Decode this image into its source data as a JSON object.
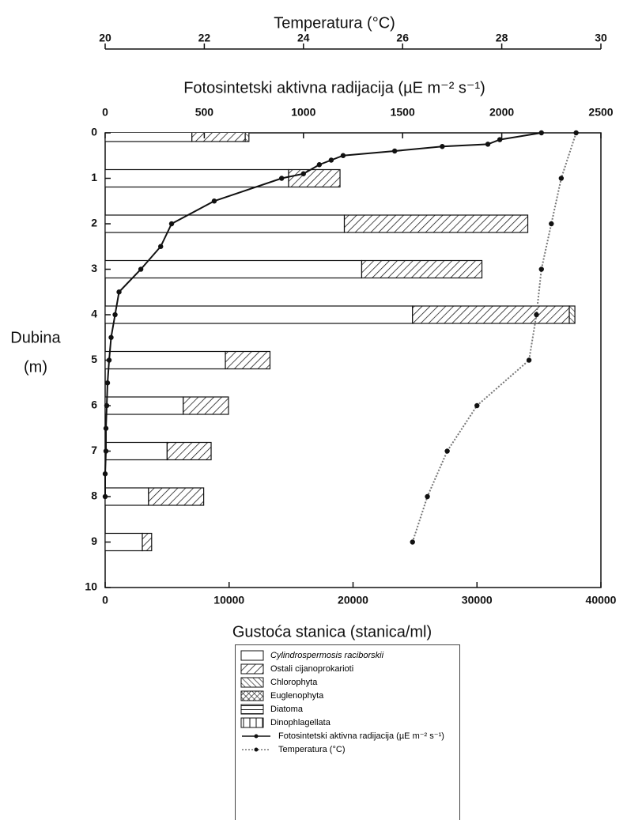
{
  "chart_data": [
    {
      "type": "bar",
      "orientation": "horizontal",
      "stacked": true,
      "xlabel": "Gustoća stanica (stanica/ml)",
      "ylabel": [
        "Dubina",
        "(m)"
      ],
      "y": [
        0,
        1,
        2,
        3,
        4,
        5,
        6,
        7,
        8,
        9
      ],
      "xlim": [
        0,
        40000
      ],
      "xticks": [
        0,
        10000,
        20000,
        30000,
        40000
      ],
      "ylim": [
        0,
        10
      ],
      "yticks": [
        0,
        1,
        2,
        3,
        4,
        5,
        6,
        7,
        8,
        9,
        10
      ],
      "y_inverted": true,
      "series": [
        {
          "name": "Cylindrospermosis raciborskii",
          "color": "#ffffff",
          "pattern": "none",
          "values": [
            7000,
            14800,
            19300,
            20700,
            24800,
            9700,
            6300,
            5000,
            3500,
            3000
          ]
        },
        {
          "name": "Ostali cijanoprokarioti",
          "color": "#ffffff",
          "pattern": "diagonal",
          "values": [
            4300,
            4150,
            14800,
            9700,
            12650,
            3600,
            3650,
            3550,
            4450,
            750
          ]
        },
        {
          "name": "Chlorophyta",
          "color": "#ffffff",
          "pattern": "backdiagonal",
          "values": [
            300,
            0,
            0,
            0,
            450,
            0,
            0,
            0,
            0,
            0
          ]
        },
        {
          "name": "Euglenophyta",
          "color": "#ffffff",
          "pattern": "crosshatch",
          "values": [
            0,
            0,
            0,
            0,
            0,
            0,
            0,
            0,
            0,
            0
          ]
        },
        {
          "name": "Diatoma",
          "color": "#ffffff",
          "pattern": "horizontal",
          "values": [
            0,
            0,
            0,
            0,
            0,
            0,
            0,
            0,
            0,
            0
          ]
        },
        {
          "name": "Dinophlagellata",
          "color": "#ffffff",
          "pattern": "vertical",
          "values": [
            0,
            0,
            0,
            0,
            0,
            0,
            0,
            0,
            0,
            0
          ]
        }
      ]
    },
    {
      "type": "line",
      "xlabel": "Fotosintetski aktivna radijacija (µE m⁻² s⁻¹)",
      "xlim": [
        0,
        2500
      ],
      "xticks": [
        0,
        500,
        1000,
        1500,
        2000,
        2500
      ],
      "y": [
        0,
        0.15,
        0.25,
        0.3,
        0.4,
        0.5,
        0.6,
        0.7,
        0.9,
        1,
        1.5,
        2,
        2.5,
        3,
        3.5,
        4,
        4.5,
        5,
        5.5,
        6,
        6.5,
        7,
        7.5,
        8
      ],
      "series": [
        {
          "name": "Fotosintetski aktivna radijacija (µE m⁻² s⁻¹)",
          "color": "#111111",
          "line_style": "solid",
          "values": [
            2200,
            1990,
            1930,
            1700,
            1460,
            1200,
            1140,
            1080,
            1000,
            890,
            550,
            335,
            280,
            180,
            70,
            50,
            30,
            20,
            12,
            8,
            4,
            4,
            0,
            0
          ]
        }
      ]
    },
    {
      "type": "line",
      "xlabel": "Temperatura (°C)",
      "xlim": [
        20,
        30
      ],
      "xticks": [
        20,
        22,
        24,
        26,
        28,
        30
      ],
      "y": [
        0,
        1,
        2,
        3,
        4,
        5,
        6,
        7,
        8,
        9
      ],
      "series": [
        {
          "name": "Temperatura (°C)",
          "color": "#777777",
          "line_style": "dotted",
          "values": [
            29.5,
            29.2,
            29.0,
            28.8,
            28.7,
            28.55,
            27.5,
            26.9,
            26.5,
            26.2
          ]
        }
      ]
    }
  ]
}
